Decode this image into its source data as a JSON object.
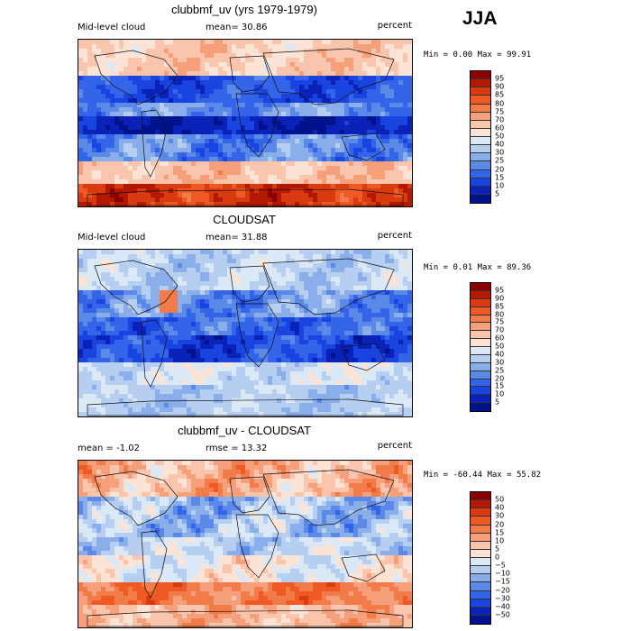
{
  "season": "JJA",
  "panels": [
    {
      "title": "clubbmf_uv (yrs 1979-1979)",
      "left_label": "Mid-level cloud",
      "center_label": "mean=  30.86",
      "right_label": "percent",
      "min_max": "Min =   0.00 Max =  99.91",
      "colorbar_labels": [
        "95",
        "90",
        "85",
        "80",
        "75",
        "70",
        "60",
        "50",
        "40",
        "30",
        "25",
        "20",
        "15",
        "10",
        "5"
      ],
      "colorbar_colors": [
        "#8b0000",
        "#b31800",
        "#d93a10",
        "#ef5a24",
        "#f27b4a",
        "#f5a07a",
        "#f9c5ad",
        "#fbe4d6",
        "#dbe8f6",
        "#b6cef0",
        "#8aaeea",
        "#5b89e8",
        "#3464e8",
        "#1a44e0",
        "#0a22b8",
        "#00128c"
      ],
      "field": "model"
    },
    {
      "title": "CLOUDSAT",
      "left_label": "Mid-level cloud",
      "center_label": "mean=  31.88",
      "right_label": "percent",
      "min_max": "Min =   0.01 Max =  89.36",
      "colorbar_labels": [
        "95",
        "90",
        "85",
        "80",
        "75",
        "70",
        "60",
        "50",
        "40",
        "30",
        "25",
        "20",
        "15",
        "10",
        "5"
      ],
      "colorbar_colors": [
        "#8b0000",
        "#b31800",
        "#d93a10",
        "#ef5a24",
        "#f27b4a",
        "#f5a07a",
        "#f9c5ad",
        "#fbe4d6",
        "#dbe8f6",
        "#b6cef0",
        "#8aaeea",
        "#5b89e8",
        "#3464e8",
        "#1a44e0",
        "#0a22b8",
        "#00128c"
      ],
      "field": "obs"
    },
    {
      "title": "clubbmf_uv - CLOUDSAT",
      "left_label": "mean =  -1.02",
      "center_label": "rmse =  13.32",
      "right_label": "percent",
      "min_max": "Min = -60.44 Max =  55.82",
      "colorbar_labels": [
        "50",
        "40",
        "30",
        "20",
        "15",
        "10",
        "5",
        "0",
        "−5",
        "−10",
        "−15",
        "−20",
        "−30",
        "−40",
        "−50"
      ],
      "colorbar_colors": [
        "#8b0000",
        "#b31800",
        "#d93a10",
        "#ef5a24",
        "#f27b4a",
        "#f5a07a",
        "#f9c5ad",
        "#fbe4d6",
        "#dbe8f6",
        "#b6cef0",
        "#8aaeea",
        "#5b89e8",
        "#3464e8",
        "#1a44e0",
        "#0a22b8",
        "#00128c"
      ],
      "field": "diff"
    }
  ]
}
